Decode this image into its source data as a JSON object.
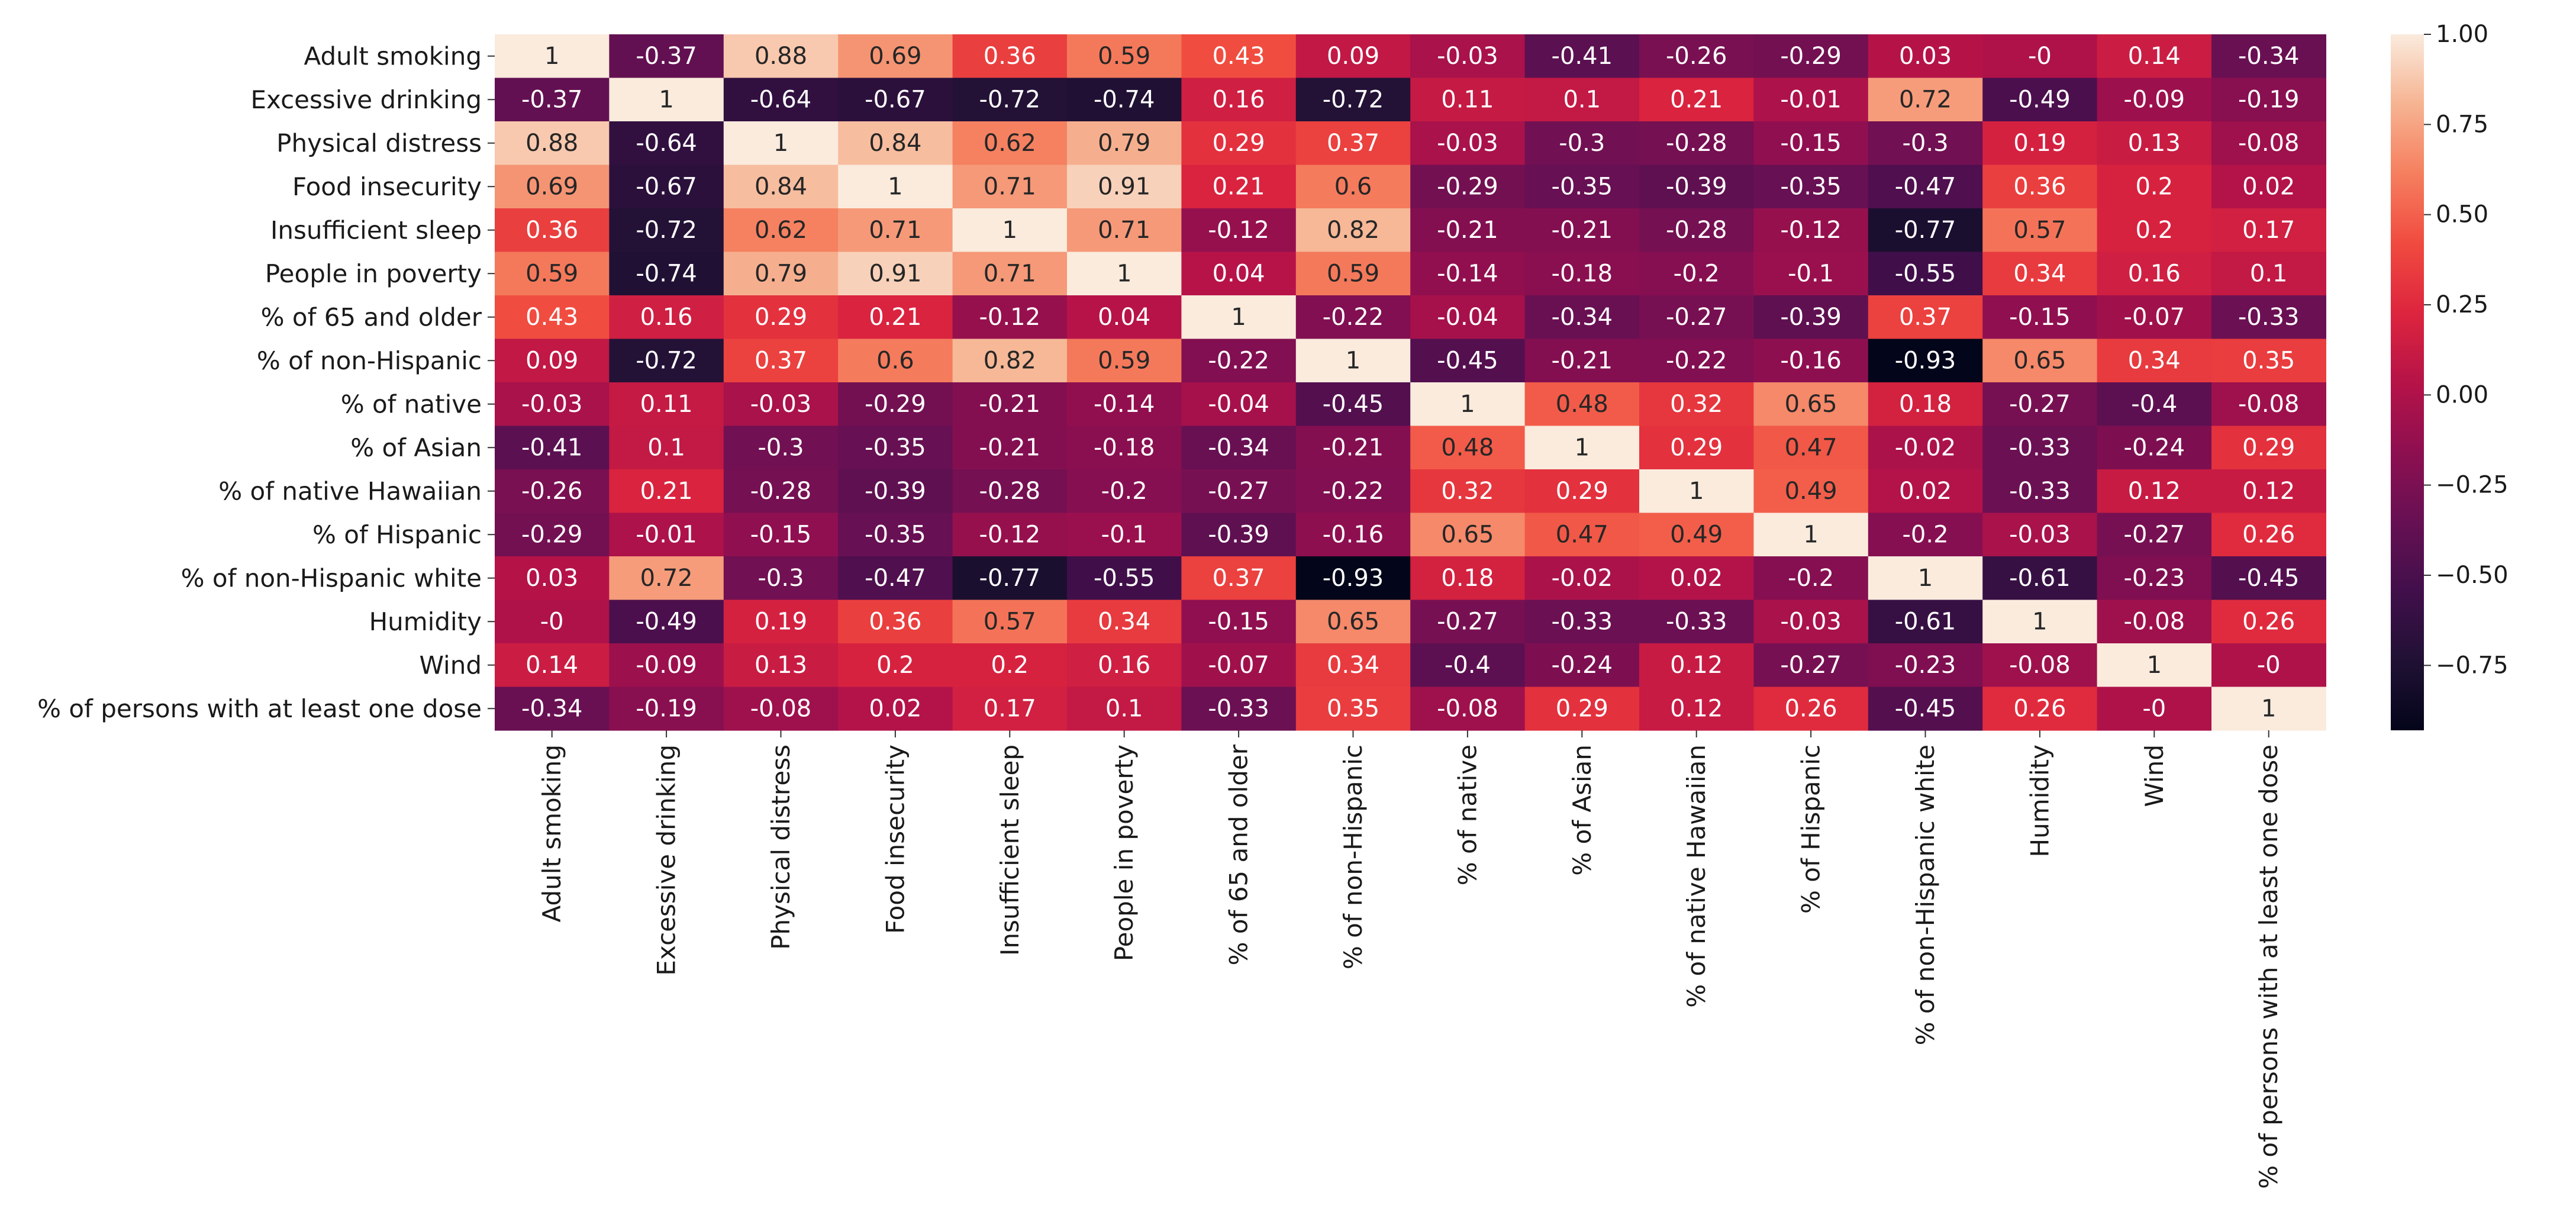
{
  "chart_data": {
    "type": "heatmap",
    "title": "",
    "xlabel": "",
    "ylabel": "",
    "labels": [
      "Adult smoking",
      "Excessive drinking",
      "Physical distress",
      "Food insecurity",
      "Insufficient sleep",
      "People in poverty",
      "% of 65 and older",
      "% of non-Hispanic",
      "% of native",
      "% of Asian",
      "% of native Hawaiian",
      "% of Hispanic",
      "% of non-Hispanic white",
      "Humidity",
      "Wind",
      "% of persons with at least one dose"
    ],
    "values": [
      [
        1,
        -0.37,
        0.88,
        0.69,
        0.36,
        0.59,
        0.43,
        0.09,
        -0.03,
        -0.41,
        -0.26,
        -0.29,
        0.03,
        -0.0,
        0.14,
        -0.34
      ],
      [
        -0.37,
        1,
        -0.64,
        -0.67,
        -0.72,
        -0.74,
        0.16,
        -0.72,
        0.11,
        0.1,
        0.21,
        -0.01,
        0.72,
        -0.49,
        -0.09,
        -0.19
      ],
      [
        0.88,
        -0.64,
        1,
        0.84,
        0.62,
        0.79,
        0.29,
        0.37,
        -0.03,
        -0.3,
        -0.28,
        -0.15,
        -0.3,
        0.19,
        0.13,
        -0.08
      ],
      [
        0.69,
        -0.67,
        0.84,
        1,
        0.71,
        0.91,
        0.21,
        0.6,
        -0.29,
        -0.35,
        -0.39,
        -0.35,
        -0.47,
        0.36,
        0.2,
        0.02
      ],
      [
        0.36,
        -0.72,
        0.62,
        0.71,
        1,
        0.71,
        -0.12,
        0.82,
        -0.21,
        -0.21,
        -0.28,
        -0.12,
        -0.77,
        0.57,
        0.2,
        0.17
      ],
      [
        0.59,
        -0.74,
        0.79,
        0.91,
        0.71,
        1,
        0.04,
        0.59,
        -0.14,
        -0.18,
        -0.2,
        -0.1,
        -0.55,
        0.34,
        0.16,
        0.1
      ],
      [
        0.43,
        0.16,
        0.29,
        0.21,
        -0.12,
        0.04,
        1,
        -0.22,
        -0.04,
        -0.34,
        -0.27,
        -0.39,
        0.37,
        -0.15,
        -0.07,
        -0.33
      ],
      [
        0.09,
        -0.72,
        0.37,
        0.6,
        0.82,
        0.59,
        -0.22,
        1,
        -0.45,
        -0.21,
        -0.22,
        -0.16,
        -0.93,
        0.65,
        0.34,
        0.35
      ],
      [
        -0.03,
        0.11,
        -0.03,
        -0.29,
        -0.21,
        -0.14,
        -0.04,
        -0.45,
        1,
        0.48,
        0.32,
        0.65,
        0.18,
        -0.27,
        -0.4,
        -0.08
      ],
      [
        -0.41,
        0.1,
        -0.3,
        -0.35,
        -0.21,
        -0.18,
        -0.34,
        -0.21,
        0.48,
        1,
        0.29,
        0.47,
        -0.02,
        -0.33,
        -0.24,
        0.29
      ],
      [
        -0.26,
        0.21,
        -0.28,
        -0.39,
        -0.28,
        -0.2,
        -0.27,
        -0.22,
        0.32,
        0.29,
        1,
        0.49,
        0.02,
        -0.33,
        0.12,
        0.12
      ],
      [
        -0.29,
        -0.01,
        -0.15,
        -0.35,
        -0.12,
        -0.1,
        -0.39,
        -0.16,
        0.65,
        0.47,
        0.49,
        1,
        -0.2,
        -0.03,
        -0.27,
        0.26
      ],
      [
        0.03,
        0.72,
        -0.3,
        -0.47,
        -0.77,
        -0.55,
        0.37,
        -0.93,
        0.18,
        -0.02,
        0.02,
        -0.2,
        1,
        -0.61,
        -0.23,
        -0.45
      ],
      [
        -0.0,
        -0.49,
        0.19,
        0.36,
        0.57,
        0.34,
        -0.15,
        0.65,
        -0.27,
        -0.33,
        -0.33,
        -0.03,
        -0.61,
        1,
        -0.08,
        0.26
      ],
      [
        0.14,
        -0.09,
        0.13,
        0.2,
        0.2,
        0.16,
        -0.07,
        0.34,
        -0.4,
        -0.24,
        0.12,
        -0.27,
        -0.23,
        -0.08,
        1,
        -0.0
      ],
      [
        -0.34,
        -0.19,
        -0.08,
        0.02,
        0.17,
        0.1,
        -0.33,
        0.35,
        -0.08,
        0.29,
        0.12,
        0.26,
        -0.45,
        0.26,
        -0.0,
        1
      ]
    ],
    "cell_labels": [
      [
        "1",
        "-0.37",
        "0.88",
        "0.69",
        "0.36",
        "0.59",
        "0.43",
        "0.09",
        "-0.03",
        "-0.41",
        "-0.26",
        "-0.29",
        "0.03",
        "-0",
        "0.14",
        "-0.34"
      ],
      [
        "-0.37",
        "1",
        "-0.64",
        "-0.67",
        "-0.72",
        "-0.74",
        "0.16",
        "-0.72",
        "0.11",
        "0.1",
        "0.21",
        "-0.01",
        "0.72",
        "-0.49",
        "-0.09",
        "-0.19"
      ],
      [
        "0.88",
        "-0.64",
        "1",
        "0.84",
        "0.62",
        "0.79",
        "0.29",
        "0.37",
        "-0.03",
        "-0.3",
        "-0.28",
        "-0.15",
        "-0.3",
        "0.19",
        "0.13",
        "-0.08"
      ],
      [
        "0.69",
        "-0.67",
        "0.84",
        "1",
        "0.71",
        "0.91",
        "0.21",
        "0.6",
        "-0.29",
        "-0.35",
        "-0.39",
        "-0.35",
        "-0.47",
        "0.36",
        "0.2",
        "0.02"
      ],
      [
        "0.36",
        "-0.72",
        "0.62",
        "0.71",
        "1",
        "0.71",
        "-0.12",
        "0.82",
        "-0.21",
        "-0.21",
        "-0.28",
        "-0.12",
        "-0.77",
        "0.57",
        "0.2",
        "0.17"
      ],
      [
        "0.59",
        "-0.74",
        "0.79",
        "0.91",
        "0.71",
        "1",
        "0.04",
        "0.59",
        "-0.14",
        "-0.18",
        "-0.2",
        "-0.1",
        "-0.55",
        "0.34",
        "0.16",
        "0.1"
      ],
      [
        "0.43",
        "0.16",
        "0.29",
        "0.21",
        "-0.12",
        "0.04",
        "1",
        "-0.22",
        "-0.04",
        "-0.34",
        "-0.27",
        "-0.39",
        "0.37",
        "-0.15",
        "-0.07",
        "-0.33"
      ],
      [
        "0.09",
        "-0.72",
        "0.37",
        "0.6",
        "0.82",
        "0.59",
        "-0.22",
        "1",
        "-0.45",
        "-0.21",
        "-0.22",
        "-0.16",
        "-0.93",
        "0.65",
        "0.34",
        "0.35"
      ],
      [
        "-0.03",
        "0.11",
        "-0.03",
        "-0.29",
        "-0.21",
        "-0.14",
        "-0.04",
        "-0.45",
        "1",
        "0.48",
        "0.32",
        "0.65",
        "0.18",
        "-0.27",
        "-0.4",
        "-0.08"
      ],
      [
        "-0.41",
        "0.1",
        "-0.3",
        "-0.35",
        "-0.21",
        "-0.18",
        "-0.34",
        "-0.21",
        "0.48",
        "1",
        "0.29",
        "0.47",
        "-0.02",
        "-0.33",
        "-0.24",
        "0.29"
      ],
      [
        "-0.26",
        "0.21",
        "-0.28",
        "-0.39",
        "-0.28",
        "-0.2",
        "-0.27",
        "-0.22",
        "0.32",
        "0.29",
        "1",
        "0.49",
        "0.02",
        "-0.33",
        "0.12",
        "0.12"
      ],
      [
        "-0.29",
        "-0.01",
        "-0.15",
        "-0.35",
        "-0.12",
        "-0.1",
        "-0.39",
        "-0.16",
        "0.65",
        "0.47",
        "0.49",
        "1",
        "-0.2",
        "-0.03",
        "-0.27",
        "0.26"
      ],
      [
        "0.03",
        "0.72",
        "-0.3",
        "-0.47",
        "-0.77",
        "-0.55",
        "0.37",
        "-0.93",
        "0.18",
        "-0.02",
        "0.02",
        "-0.2",
        "1",
        "-0.61",
        "-0.23",
        "-0.45"
      ],
      [
        "-0",
        "-0.49",
        "0.19",
        "0.36",
        "0.57",
        "0.34",
        "-0.15",
        "0.65",
        "-0.27",
        "-0.33",
        "-0.33",
        "-0.03",
        "-0.61",
        "1",
        "-0.08",
        "0.26"
      ],
      [
        "0.14",
        "-0.09",
        "0.13",
        "0.2",
        "0.2",
        "0.16",
        "-0.07",
        "0.34",
        "-0.4",
        "-0.24",
        "0.12",
        "-0.27",
        "-0.23",
        "-0.08",
        "1",
        "-0"
      ],
      [
        "-0.34",
        "-0.19",
        "-0.08",
        "0.02",
        "0.17",
        "0.1",
        "-0.33",
        "0.35",
        "-0.08",
        "0.29",
        "0.12",
        "0.26",
        "-0.45",
        "0.26",
        "-0",
        "1"
      ]
    ],
    "colormap": "rocket",
    "vmin": -0.93,
    "vmax": 1.0,
    "colorbar": {
      "ticks": [
        1.0,
        0.75,
        0.5,
        0.25,
        0.0,
        -0.25,
        -0.5,
        -0.75
      ],
      "tick_labels": [
        "1.00",
        "0.75",
        "0.50",
        "0.25",
        "0.00",
        "−0.25",
        "−0.50",
        "−0.75"
      ],
      "placement": "right"
    },
    "grid": false,
    "legend": "none"
  }
}
